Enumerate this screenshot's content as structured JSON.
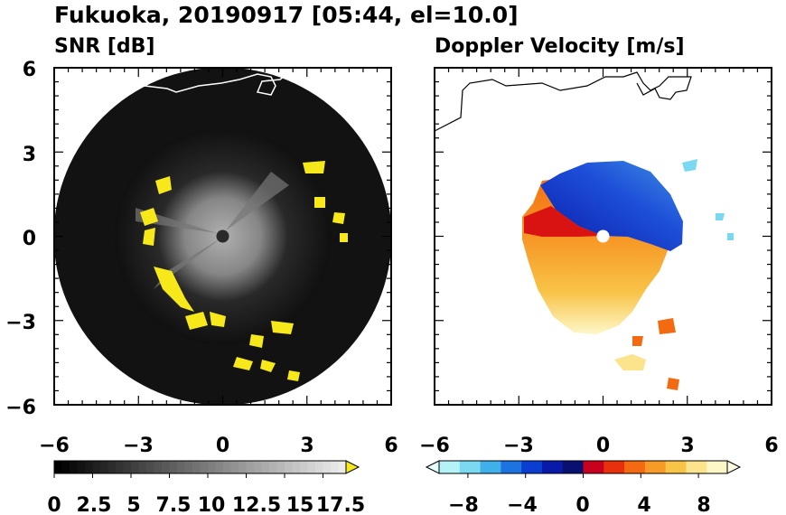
{
  "figure": {
    "title": "Fukuoka, 20190917 [05:44, el=10.0]"
  },
  "chart_data": [
    {
      "type": "heatmap",
      "title": "SNR [dB]",
      "xlim": [
        -6,
        6
      ],
      "ylim": [
        -6,
        6
      ],
      "xticks": [
        "−6",
        "−3",
        "0",
        "3",
        "6"
      ],
      "yticks": [
        "6",
        "3",
        "0",
        "−3",
        "−6"
      ],
      "grid": false,
      "colorbar": {
        "ticks": [
          "0",
          "2.5",
          "5",
          "7.5",
          "10",
          "12.5",
          "15",
          "17.5"
        ],
        "tick_values": [
          0,
          2.5,
          5,
          7.5,
          10,
          12.5,
          15,
          17.5
        ],
        "range": [
          0,
          19
        ],
        "extend": "max",
        "colors": {
          "low": "#000000",
          "high": "#eeeeee",
          "over": "#f7e81a"
        }
      }
    },
    {
      "type": "heatmap",
      "title": "Doppler Velocity [m/s]",
      "xlim": [
        -6,
        6
      ],
      "ylim": [
        -6,
        6
      ],
      "xticks": [
        "−6",
        "−3",
        "0",
        "3",
        "6"
      ],
      "yticks": [],
      "grid": false,
      "colorbar": {
        "ticks": [
          "−8",
          "−4",
          "0",
          "4",
          "8"
        ],
        "tick_values": [
          -8,
          -4,
          0,
          4,
          8
        ],
        "range": [
          -10,
          10
        ],
        "extend": "both",
        "colors": {
          "negative": [
            "#b3f3f7",
            "#7ad9f0",
            "#3fb0ea",
            "#1d74e0",
            "#0a3ed0",
            "#0a1aa8",
            "#081070"
          ],
          "positive": [
            "#c8001e",
            "#e8300c",
            "#f46a10",
            "#f79a28",
            "#f8c448",
            "#fbe48c",
            "#fdf7c8"
          ]
        }
      }
    }
  ]
}
